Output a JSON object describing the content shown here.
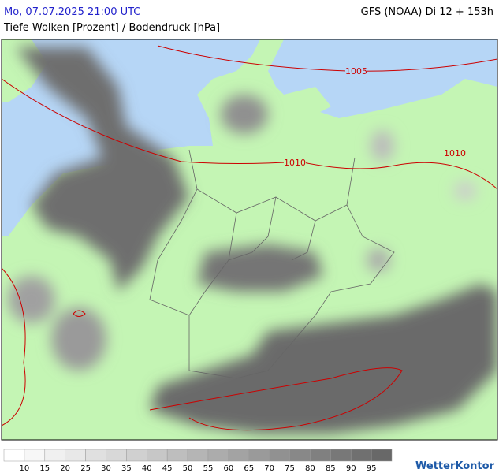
{
  "header": {
    "time": "Mo, 07.07.2025 21:00 UTC",
    "model": "GFS (NOAA) Di 12 + 153h",
    "subtitle": "Tiefe Wolken [Prozent] / Bodendruck [hPa]"
  },
  "isobars": [
    {
      "label": "1005"
    },
    {
      "label": "1010"
    },
    {
      "label": "1010"
    }
  ],
  "legend": {
    "labels": [
      10,
      15,
      20,
      25,
      30,
      35,
      40,
      45,
      50,
      55,
      60,
      65,
      70,
      75,
      80,
      85,
      90,
      95
    ],
    "colors": [
      "#ffffff",
      "#f7f7f7",
      "#f0f0f0",
      "#e8e8e8",
      "#e0e0e0",
      "#d8d8d8",
      "#d0d0d0",
      "#c7c7c7",
      "#bebebe",
      "#b5b5b5",
      "#acacac",
      "#a3a3a3",
      "#9a9a9a",
      "#919191",
      "#888888",
      "#808080",
      "#787878",
      "#707070",
      "#686868"
    ]
  },
  "logo": "WetterKontor"
}
